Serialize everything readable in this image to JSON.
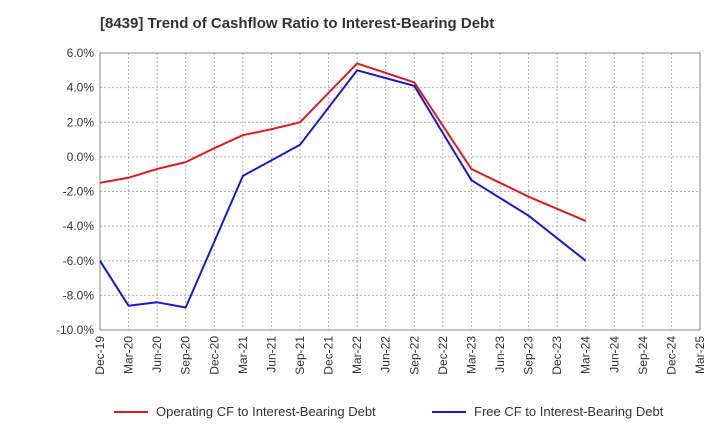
{
  "chart_data": {
    "type": "line",
    "title": "[8439]  Trend of Cashflow Ratio to Interest-Bearing Debt",
    "xlabel": "",
    "ylabel": "",
    "categories": [
      "Dec-19",
      "Mar-20",
      "Jun-20",
      "Sep-20",
      "Dec-20",
      "Mar-21",
      "Jun-21",
      "Sep-21",
      "Dec-21",
      "Mar-22",
      "Jun-22",
      "Sep-22",
      "Dec-22",
      "Mar-23",
      "Jun-23",
      "Sep-23",
      "Dec-23",
      "Mar-24",
      "Jun-24",
      "Sep-24",
      "Dec-24",
      "Mar-25"
    ],
    "ylim": [
      -10,
      6
    ],
    "yticks": [
      6,
      4,
      2,
      0,
      -2,
      -4,
      -6,
      -8,
      -10
    ],
    "ytick_labels": [
      "6.0%",
      "4.0%",
      "2.0%",
      "0.0%",
      "-2.0%",
      "-4.0%",
      "-6.0%",
      "-8.0%",
      "-10.0%"
    ],
    "grid": true,
    "legend_position": "bottom",
    "series": [
      {
        "name": "Operating CF to Interest-Bearing Debt",
        "color": "#e31a1c",
        "values": [
          -1.5,
          -1.2,
          -0.7,
          -0.3,
          0.5,
          1.25,
          1.6,
          2.0,
          null,
          5.4,
          null,
          4.3,
          null,
          -0.7,
          -1.5,
          -2.3,
          -3.0,
          -3.7,
          null,
          null,
          null,
          null
        ]
      },
      {
        "name": "Free CF to Interest-Bearing Debt",
        "color": "#1a1acd",
        "values": [
          -6.0,
          -8.6,
          -8.4,
          -8.7,
          null,
          -1.1,
          null,
          0.7,
          null,
          5.0,
          null,
          4.1,
          null,
          -1.35,
          null,
          -3.4,
          null,
          -6.0,
          null,
          null,
          null,
          null
        ]
      }
    ]
  }
}
